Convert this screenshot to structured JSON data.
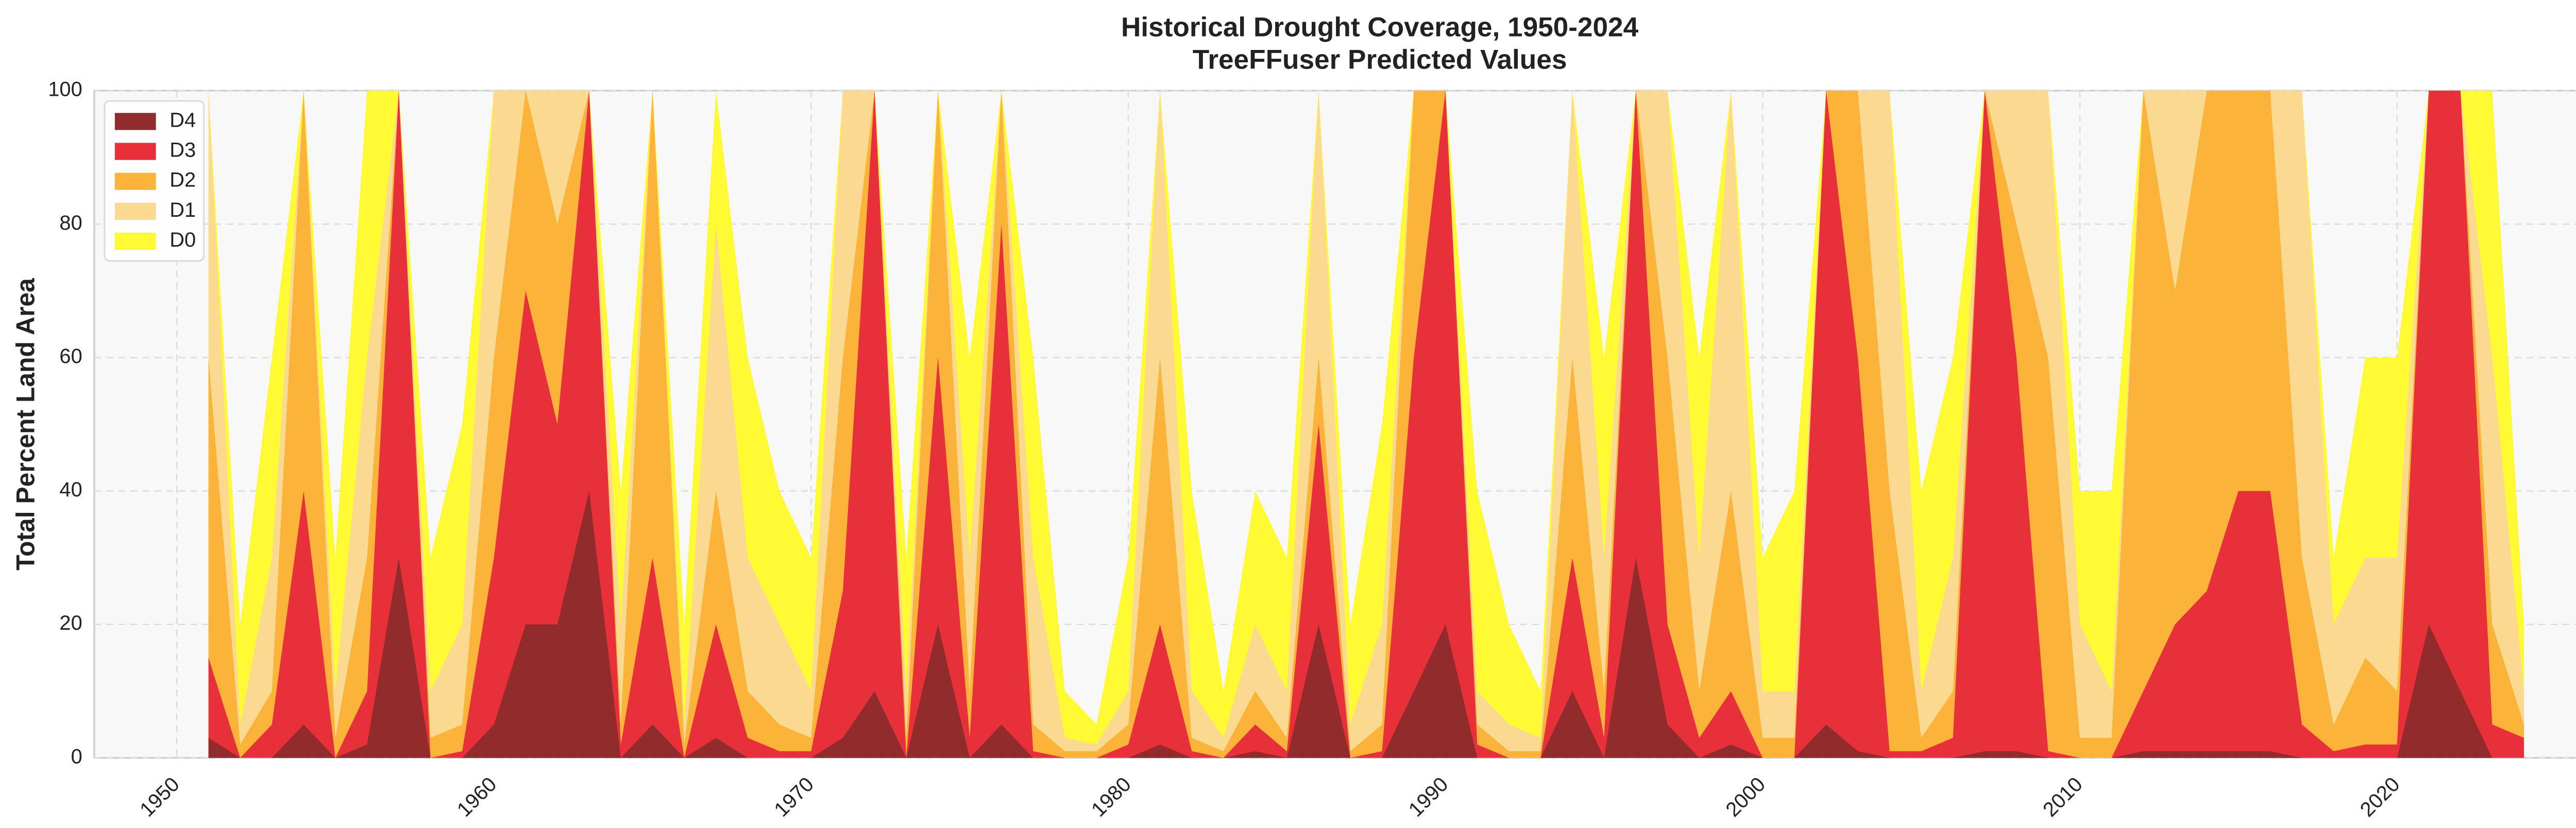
{
  "chart_data": {
    "type": "area",
    "title": "Historical Drought Coverage, 1950-2024",
    "subtitle": "TreeFFuser Predicted Values",
    "y_label": "Total Percent Land Area",
    "x": [
      1951,
      1952,
      1953,
      1954,
      1955,
      1956,
      1957,
      1958,
      1959,
      1960,
      1961,
      1962,
      1963,
      1964,
      1965,
      1966,
      1967,
      1968,
      1969,
      1970,
      1971,
      1972,
      1973,
      1974,
      1975,
      1976,
      1977,
      1978,
      1979,
      1980,
      1981,
      1982,
      1983,
      1984,
      1985,
      1986,
      1987,
      1988,
      1989,
      1990,
      1991,
      1992,
      1993,
      1994,
      1995,
      1996,
      1997,
      1998,
      1999,
      2000,
      2001,
      2002,
      2003,
      2004,
      2005,
      2006,
      2007,
      2008,
      2009,
      2010,
      2011,
      2012,
      2013,
      2014,
      2015,
      2016,
      2017,
      2018,
      2019,
      2020,
      2021,
      2022,
      2023,
      2024
    ],
    "series": [
      {
        "name": "D4",
        "color": "#922b2b",
        "values": [
          3,
          0,
          0,
          5,
          0,
          2,
          30,
          0,
          0,
          5,
          20,
          20,
          40,
          0,
          5,
          0,
          3,
          0,
          0,
          0,
          3,
          10,
          0,
          20,
          0,
          5,
          0,
          0,
          0,
          0,
          2,
          0,
          0,
          1,
          0,
          20,
          0,
          0,
          10,
          20,
          0,
          0,
          0,
          10,
          0,
          30,
          5,
          0,
          2,
          0,
          0,
          5,
          1,
          0,
          0,
          0,
          1,
          1,
          0,
          0,
          0,
          1,
          1,
          1,
          1,
          1,
          0,
          0,
          0,
          0,
          20,
          10,
          0,
          0
        ]
      },
      {
        "name": "D3",
        "color": "#e8303a",
        "values": [
          15,
          0,
          5,
          40,
          0,
          10,
          100,
          0,
          1,
          30,
          70,
          50,
          100,
          2,
          30,
          0,
          20,
          3,
          1,
          1,
          25,
          100,
          0,
          60,
          3,
          80,
          1,
          0,
          0,
          2,
          20,
          1,
          0,
          5,
          1,
          50,
          0,
          1,
          60,
          100,
          2,
          0,
          0,
          30,
          3,
          100,
          20,
          3,
          10,
          0,
          0,
          100,
          60,
          1,
          1,
          3,
          100,
          60,
          1,
          0,
          0,
          10,
          20,
          25,
          40,
          40,
          5,
          1,
          2,
          2,
          100,
          100,
          5,
          3
        ]
      },
      {
        "name": "D2",
        "color": "#fbb33a",
        "values": [
          60,
          2,
          10,
          100,
          3,
          30,
          100,
          3,
          5,
          60,
          100,
          80,
          100,
          5,
          100,
          2,
          40,
          10,
          5,
          3,
          60,
          100,
          3,
          100,
          10,
          100,
          5,
          1,
          1,
          5,
          60,
          3,
          1,
          10,
          3,
          60,
          1,
          5,
          100,
          100,
          5,
          1,
          1,
          60,
          10,
          100,
          60,
          10,
          40,
          3,
          3,
          100,
          100,
          40,
          3,
          10,
          100,
          80,
          60,
          3,
          3,
          100,
          70,
          100,
          100,
          100,
          30,
          5,
          15,
          10,
          100,
          100,
          20,
          5
        ]
      },
      {
        "name": "D1",
        "color": "#fad990",
        "values": [
          100,
          5,
          30,
          100,
          10,
          60,
          100,
          10,
          20,
          100,
          100,
          100,
          100,
          20,
          100,
          5,
          80,
          30,
          20,
          10,
          100,
          100,
          10,
          100,
          30,
          100,
          30,
          3,
          2,
          10,
          100,
          10,
          3,
          20,
          10,
          100,
          5,
          20,
          100,
          100,
          10,
          5,
          3,
          100,
          30,
          100,
          100,
          30,
          100,
          10,
          10,
          100,
          100,
          100,
          10,
          30,
          100,
          100,
          100,
          20,
          10,
          100,
          100,
          100,
          100,
          100,
          100,
          20,
          30,
          30,
          100,
          100,
          60,
          10
        ]
      },
      {
        "name": "D0",
        "color": "#fffa33",
        "values": [
          100,
          20,
          60,
          100,
          30,
          100,
          100,
          30,
          50,
          100,
          100,
          100,
          100,
          40,
          100,
          20,
          100,
          60,
          40,
          30,
          100,
          100,
          30,
          100,
          60,
          100,
          60,
          10,
          5,
          30,
          100,
          40,
          10,
          40,
          30,
          100,
          20,
          50,
          100,
          100,
          40,
          20,
          10,
          100,
          60,
          100,
          100,
          60,
          100,
          30,
          40,
          100,
          100,
          100,
          40,
          60,
          100,
          100,
          100,
          40,
          40,
          100,
          100,
          100,
          100,
          100,
          100,
          30,
          60,
          60,
          100,
          100,
          100,
          20
        ]
      }
    ],
    "xlim": [
      1947.4,
      2028.4
    ],
    "xticks": [
      1950,
      1960,
      1970,
      1980,
      1990,
      2000,
      2010,
      2020
    ],
    "ylim": [
      0,
      100
    ],
    "yticks": [
      0,
      20,
      40,
      60,
      80,
      100
    ],
    "grid": true,
    "legend": "upper left"
  }
}
